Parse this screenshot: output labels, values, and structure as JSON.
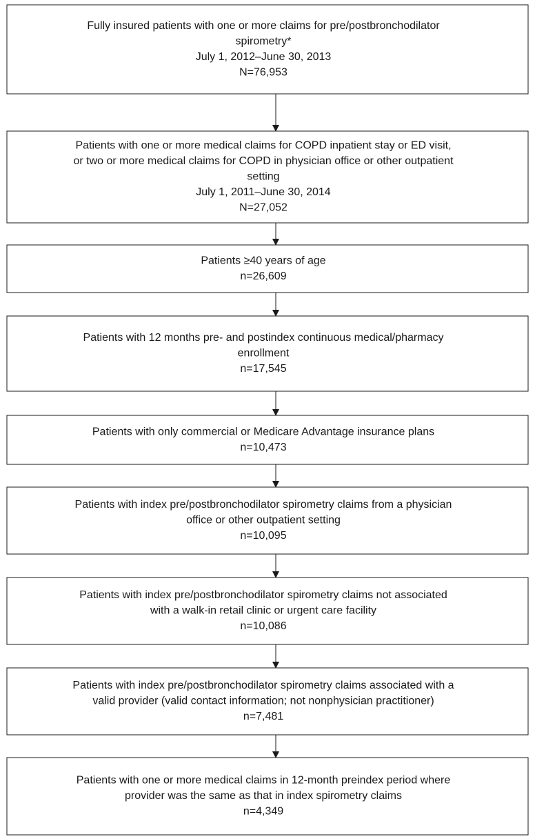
{
  "nodes": [
    {
      "lines": [
        "Fully insured patients with one or more claims for pre/postbronchodilator",
        "spirometry*",
        "July 1, 2012–June 30, 2013",
        "N=76,953"
      ]
    },
    {
      "lines": [
        "Patients with one or more medical claims for COPD inpatient stay or ED visit,",
        "or two or more medical claims for COPD in physician office or other outpatient",
        "setting",
        "July 1, 2011–June 30, 2014",
        "N=27,052"
      ]
    },
    {
      "lines": [
        "Patients ≥40 years of age",
        "n=26,609"
      ]
    },
    {
      "lines": [
        "Patients with 12 months pre- and postindex continuous medical/pharmacy",
        "enrollment",
        "n=17,545"
      ]
    },
    {
      "lines": [
        "Patients with only commercial or Medicare Advantage insurance plans",
        "n=10,473"
      ]
    },
    {
      "lines": [
        "Patients with index pre/postbronchodilator spirometry claims from a physician",
        "office or other outpatient setting",
        "n=10,095"
      ]
    },
    {
      "lines": [
        "Patients with index pre/postbronchodilator spirometry claims not associated",
        "with a walk-in retail clinic or urgent care facility",
        "n=10,086"
      ]
    },
    {
      "lines": [
        "Patients with index pre/postbronchodilator spirometry claims associated with a",
        "valid provider (valid contact information; not nonphysician practitioner)",
        "n=7,481"
      ]
    },
    {
      "lines": [
        "Patients with one or more medical claims in 12-month preindex period where",
        "provider was the same as that in index spirometry claims",
        "n=4,349"
      ]
    }
  ]
}
